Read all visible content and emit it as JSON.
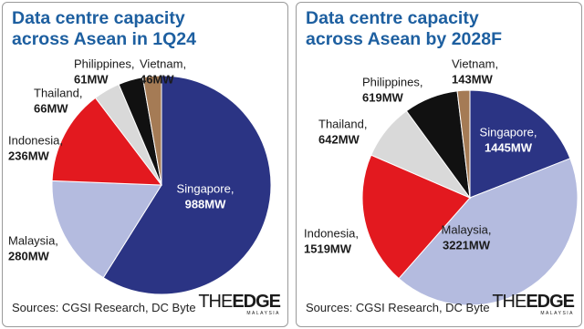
{
  "chart_data": [
    {
      "type": "pie",
      "title": "Data centre capacity across Asean in 1Q24",
      "categories": [
        "Singapore,",
        "Malaysia,",
        "Indonesia,",
        "Thailand,",
        "Philippines,",
        "Vietnam,"
      ],
      "values": [
        988,
        280,
        236,
        66,
        61,
        46
      ],
      "value_labels": [
        "988MW",
        "280MW",
        "236MW",
        "66MW",
        "61MW",
        "46MW"
      ],
      "colors": [
        "#2b3484",
        "#b4bbdf",
        "#e3191f",
        "#d9d9d9",
        "#111111",
        "#a57b55"
      ],
      "source": "Sources: CGSI Research, DC Byte"
    },
    {
      "type": "pie",
      "title": "Data centre capacity across Asean by 2028F",
      "categories": [
        "Singapore,",
        "Malaysia,",
        "Indonesia,",
        "Thailand,",
        "Philippines,",
        "Vietnam,"
      ],
      "values": [
        1445,
        3221,
        1519,
        642,
        619,
        143
      ],
      "value_labels": [
        "1445MW",
        "3221MW",
        "1519MW",
        "642MW",
        "619MW",
        "143MW"
      ],
      "colors": [
        "#2b3484",
        "#b4bbdf",
        "#e3191f",
        "#d9d9d9",
        "#111111",
        "#a57b55"
      ],
      "source": "Sources: CGSI Research, DC Byte"
    }
  ],
  "logo": {
    "thin": "THE",
    "bold": "EDGE",
    "sub": "MALAYSIA"
  }
}
